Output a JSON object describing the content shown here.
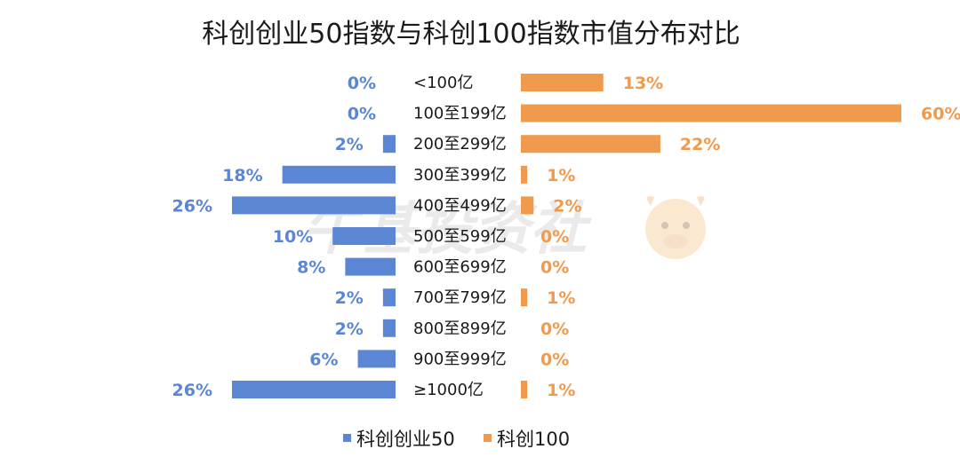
{
  "watermark": "牛基投资社",
  "chart_data": {
    "type": "bar",
    "orientation": "horizontal-butterfly",
    "title": "科创创业50指数与科创100指数市值分布对比",
    "categories": [
      "<100亿",
      "100至199亿",
      "200至299亿",
      "300至399亿",
      "400至499亿",
      "500至599亿",
      "600至699亿",
      "700至799亿",
      "800至899亿",
      "900至999亿",
      "≥1000亿"
    ],
    "series": [
      {
        "name": "科创创业50",
        "color": "#5b86d3",
        "side": "left",
        "values": [
          0,
          0,
          2,
          18,
          26,
          10,
          8,
          2,
          2,
          6,
          26
        ],
        "labels": [
          "0%",
          "0%",
          "2%",
          "18%",
          "26%",
          "10%",
          "8%",
          "2%",
          "2%",
          "6%",
          "26%"
        ]
      },
      {
        "name": "科创100",
        "color": "#ef9a4c",
        "side": "right",
        "values": [
          13,
          60,
          22,
          1,
          2,
          0,
          0,
          1,
          0,
          0,
          1
        ],
        "labels": [
          "13%",
          "60%",
          "22%",
          "1%",
          "2%",
          "0%",
          "0%",
          "1%",
          "0%",
          "0%",
          "1%"
        ]
      }
    ],
    "unit": "%",
    "legend_position": "bottom-center",
    "grid": false
  }
}
